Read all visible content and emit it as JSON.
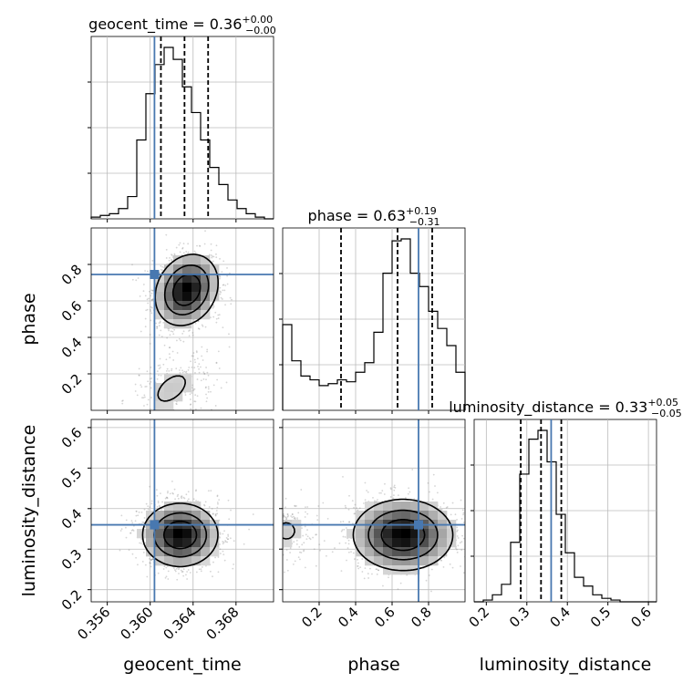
{
  "chart_data": {
    "type": "corner",
    "colors": {
      "truth": "#4878b0",
      "hist": "#000000",
      "contour": "#000000",
      "grid": "#bbbbbb"
    },
    "parameters": [
      {
        "name": "geocent_time",
        "title_prefix": "geocent_time = 0.36",
        "sup": "+0.00",
        "sub": "−0.00",
        "range": [
          0.3545,
          0.3715
        ],
        "ticks": [
          0.356,
          0.36,
          0.364,
          0.368
        ],
        "tick_labels": [
          "0.356",
          "0.360",
          "0.364",
          "0.368"
        ],
        "truth": 0.3604,
        "quantiles": [
          0.361,
          0.3632,
          0.3654
        ],
        "hist": [
          0.01,
          0.02,
          0.03,
          0.06,
          0.13,
          0.46,
          0.73,
          0.9,
          1.0,
          0.93,
          0.77,
          0.62,
          0.46,
          0.3,
          0.2,
          0.11,
          0.06,
          0.03,
          0.01,
          0.0
        ]
      },
      {
        "name": "phase",
        "title_prefix": "phase = 0.63",
        "sup": "+0.19",
        "sub": "−0.31",
        "range": [
          0.0,
          1.0
        ],
        "ticks": [
          0.2,
          0.4,
          0.6,
          0.8
        ],
        "tick_labels": [
          "0.2",
          "0.4",
          "0.6",
          "0.8"
        ],
        "truth": 0.745,
        "quantiles": [
          0.32,
          0.63,
          0.82
        ],
        "hist": [
          0.45,
          0.26,
          0.18,
          0.16,
          0.13,
          0.14,
          0.16,
          0.15,
          0.2,
          0.25,
          0.41,
          0.72,
          0.89,
          0.9,
          0.72,
          0.65,
          0.52,
          0.43,
          0.34,
          0.2
        ]
      },
      {
        "name": "luminosity_distance",
        "title_prefix": "luminosity_distance = 0.33",
        "sup": "+0.05",
        "sub": "−0.05",
        "range": [
          0.17,
          0.62
        ],
        "ticks": [
          0.2,
          0.3,
          0.4,
          0.5,
          0.6
        ],
        "tick_labels": [
          "0.2",
          "0.3",
          "0.4",
          "0.5",
          "0.6"
        ],
        "truth": 0.36,
        "quantiles": [
          0.285,
          0.335,
          0.385
        ],
        "hist": [
          0.0,
          0.01,
          0.04,
          0.1,
          0.34,
          0.73,
          0.93,
          0.98,
          0.8,
          0.5,
          0.28,
          0.14,
          0.09,
          0.04,
          0.02,
          0.01,
          0.0,
          0.0,
          0.0,
          0.0
        ]
      }
    ],
    "y_axes": {
      "phase": {
        "ticks": [
          0.2,
          0.4,
          0.6,
          0.8
        ],
        "tick_labels": [
          "0.2",
          "0.4",
          "0.6",
          "0.8"
        ]
      },
      "luminosity_distance": {
        "ticks": [
          0.2,
          0.3,
          0.4,
          0.5,
          0.6
        ],
        "tick_labels": [
          "0.2",
          "0.3",
          "0.4",
          "0.5",
          "0.6"
        ]
      }
    },
    "posterior_2d": {
      "phase_vs_geocent_time": {
        "components": [
          {
            "mean": [
              0.3634,
              0.66
            ],
            "std": [
              0.0015,
              0.1
            ],
            "weight": 0.85,
            "corr": 0.2
          },
          {
            "mean": [
              0.362,
              0.12
            ],
            "std": [
              0.0022,
              0.12
            ],
            "weight": 0.15,
            "corr": 0.5
          }
        ]
      },
      "luminosity_distance_vs_geocent_time": {
        "components": [
          {
            "mean": [
              0.3628,
              0.335
            ],
            "std": [
              0.0018,
              0.04
            ],
            "weight": 1.0,
            "corr": 0.0
          }
        ]
      },
      "luminosity_distance_vs_phase": {
        "components": [
          {
            "mean": [
              0.66,
              0.335
            ],
            "std": [
              0.14,
              0.045
            ],
            "weight": 0.85,
            "corr": 0.0
          },
          {
            "mean": [
              0.02,
              0.345
            ],
            "std": [
              0.08,
              0.035
            ],
            "weight": 0.15,
            "corr": 0.0
          }
        ]
      }
    },
    "grid": true
  }
}
